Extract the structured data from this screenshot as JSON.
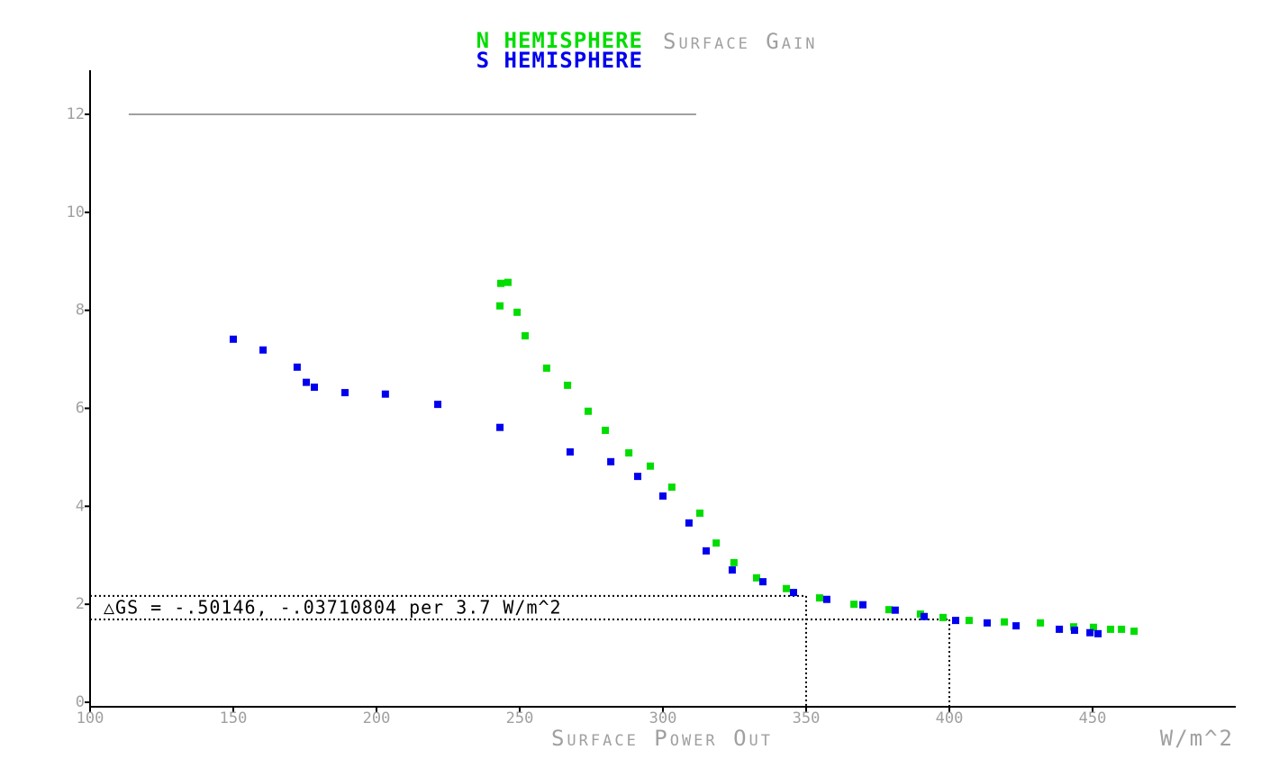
{
  "chart_data": {
    "type": "scatter",
    "title": "Surface Gain",
    "xlabel": "Surface Power Out",
    "x_unit": "W/m^2",
    "annotation": "△GS = -.50146, -.03710804 per 3.7 W/m^2",
    "xlim": [
      100,
      500
    ],
    "ylim": [
      0,
      12.9
    ],
    "xticks": [
      100,
      150,
      200,
      250,
      300,
      350,
      400,
      450
    ],
    "yticks": [
      0,
      2,
      4,
      6,
      8,
      10,
      12
    ],
    "axis_color": "#000000",
    "tick_color": "#a0a0a0",
    "reference_lines": [
      {
        "x": 350,
        "y": 2.17
      },
      {
        "x": 400,
        "y": 1.69
      }
    ],
    "cap_line": {
      "y": 12,
      "x": [
        113.5,
        311.6
      ],
      "color": "#a0a0a0"
    },
    "series": [
      {
        "name": "N HEMISPHERE",
        "color": "#00dd00",
        "x": [
          243.4,
          245.9,
          243.1,
          249.1,
          251.9,
          259.4,
          266.7,
          273.9,
          279.9,
          288.1,
          295.6,
          303.1,
          312.9,
          318.6,
          324.8,
          332.7,
          343.1,
          354.7,
          366.7,
          378.9,
          389.9,
          397.8,
          406.9,
          419.2,
          431.8,
          443.4,
          450.3,
          456.3,
          460.1,
          464.5
        ],
        "values": [
          8.55,
          8.57,
          8.09,
          7.96,
          7.48,
          6.82,
          6.47,
          5.94,
          5.55,
          5.09,
          4.82,
          4.39,
          3.86,
          3.25,
          2.85,
          2.54,
          2.32,
          2.13,
          2.0,
          1.89,
          1.8,
          1.73,
          1.67,
          1.64,
          1.62,
          1.54,
          1.53,
          1.49,
          1.49,
          1.45
        ]
      },
      {
        "name": "S HEMISPHERE",
        "color": "#0000ee",
        "x": [
          150,
          160.4,
          172.3,
          175.5,
          178.3,
          189.0,
          203.1,
          221.4,
          243.1,
          267.6,
          281.8,
          291.2,
          300.0,
          309.1,
          315.1,
          324.2,
          334.9,
          345.6,
          357.2,
          369.8,
          381.1,
          391.2,
          402.2,
          413.2,
          423.3,
          438.4,
          443.7,
          449.1,
          451.9
        ],
        "values": [
          7.41,
          7.19,
          6.84,
          6.53,
          6.43,
          6.32,
          6.29,
          6.08,
          5.61,
          5.11,
          4.91,
          4.61,
          4.21,
          3.66,
          3.09,
          2.7,
          2.46,
          2.24,
          2.1,
          1.99,
          1.88,
          1.75,
          1.67,
          1.62,
          1.56,
          1.49,
          1.47,
          1.42,
          1.4
        ]
      }
    ]
  }
}
